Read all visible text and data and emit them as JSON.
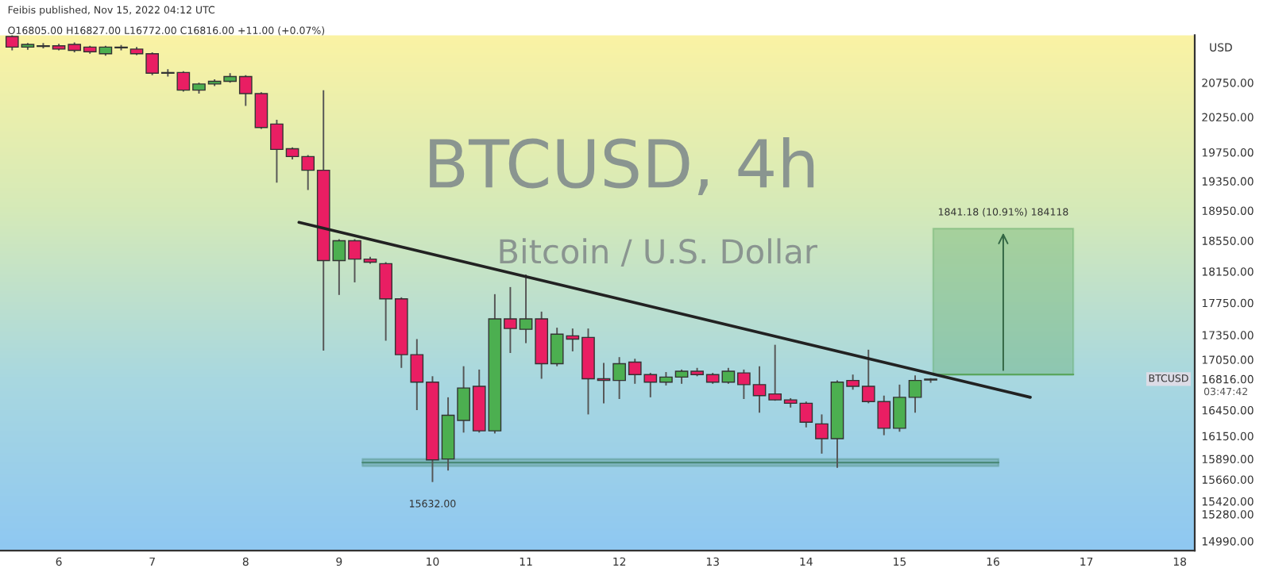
{
  "chart_data": {
    "type": "candlestick",
    "title": "BTCUSD, 4h",
    "subtitle": "Bitcoin / U.S. Dollar",
    "ylabel": "USD",
    "x": [
      5.5,
      5.667,
      5.833,
      6,
      6.167,
      6.333,
      6.5,
      6.667,
      6.833,
      7,
      7.167,
      7.333,
      7.5,
      7.667,
      7.833,
      8,
      8.167,
      8.333,
      8.5,
      8.667,
      8.833,
      9,
      9.167,
      9.333,
      9.5,
      9.667,
      9.833,
      10,
      10.167,
      10.333,
      10.5,
      10.667,
      10.833,
      11,
      11.167,
      11.333,
      11.5,
      11.667,
      11.833,
      12,
      12.167,
      12.333,
      12.5,
      12.667,
      12.833,
      13,
      13.167,
      13.333,
      13.5,
      13.667,
      13.833,
      14,
      14.167,
      14.333,
      14.5,
      14.667,
      14.833,
      15,
      15.167,
      15.333
    ],
    "ohlc": [
      [
        21440,
        21480,
        21230,
        21280
      ],
      [
        21280,
        21340,
        21240,
        21320
      ],
      [
        21300,
        21340,
        21260,
        21290
      ],
      [
        21300,
        21330,
        21230,
        21250
      ],
      [
        21320,
        21350,
        21200,
        21230
      ],
      [
        21280,
        21300,
        21180,
        21210
      ],
      [
        21180,
        21300,
        21150,
        21280
      ],
      [
        21270,
        21310,
        21230,
        21280
      ],
      [
        21250,
        21280,
        21160,
        21180
      ],
      [
        21180,
        21200,
        20860,
        20890
      ],
      [
        20900,
        20950,
        20840,
        20890
      ],
      [
        20900,
        20920,
        20620,
        20640
      ],
      [
        20640,
        20750,
        20590,
        20730
      ],
      [
        20730,
        20800,
        20700,
        20770
      ],
      [
        20770,
        20890,
        20750,
        20840
      ],
      [
        20840,
        20860,
        20410,
        20590
      ],
      [
        20590,
        20610,
        20080,
        20100
      ],
      [
        20150,
        20210,
        19330,
        19790
      ],
      [
        19800,
        19820,
        19650,
        19690
      ],
      [
        19690,
        19710,
        19230,
        19500
      ],
      [
        19500,
        20640,
        17160,
        18290
      ],
      [
        18290,
        18570,
        17850,
        18550
      ],
      [
        18550,
        18570,
        18010,
        18310
      ],
      [
        18310,
        18340,
        18250,
        18270
      ],
      [
        18250,
        18270,
        17280,
        17800
      ],
      [
        17800,
        17820,
        16950,
        17110
      ],
      [
        17110,
        17300,
        16450,
        16780
      ],
      [
        16780,
        16850,
        15632,
        15880
      ],
      [
        15890,
        16600,
        15760,
        16390
      ],
      [
        16330,
        16970,
        16190,
        16710
      ],
      [
        16730,
        16930,
        16190,
        16210
      ],
      [
        16210,
        17860,
        16180,
        17550
      ],
      [
        17550,
        17950,
        17130,
        17430
      ],
      [
        17420,
        18110,
        17250,
        17550
      ],
      [
        17550,
        17640,
        16820,
        17000
      ],
      [
        17000,
        17440,
        16970,
        17360
      ],
      [
        17340,
        17430,
        17150,
        17300
      ],
      [
        17320,
        17430,
        16400,
        16820
      ],
      [
        16820,
        17010,
        16530,
        16800
      ],
      [
        16800,
        17080,
        16580,
        17000
      ],
      [
        17020,
        17060,
        16760,
        16870
      ],
      [
        16870,
        16890,
        16600,
        16780
      ],
      [
        16780,
        16900,
        16740,
        16840
      ],
      [
        16840,
        16930,
        16760,
        16910
      ],
      [
        16910,
        16950,
        16850,
        16870
      ],
      [
        16870,
        16890,
        16760,
        16780
      ],
      [
        16780,
        16950,
        16760,
        16910
      ],
      [
        16890,
        16930,
        16580,
        16750
      ],
      [
        16750,
        16970,
        16420,
        16620
      ],
      [
        16640,
        17230,
        16560,
        16570
      ],
      [
        16570,
        16590,
        16480,
        16530
      ],
      [
        16530,
        16550,
        16250,
        16310
      ],
      [
        16290,
        16400,
        15950,
        16120
      ],
      [
        16120,
        16800,
        15790,
        16780
      ],
      [
        16800,
        16870,
        16690,
        16730
      ],
      [
        16730,
        17170,
        16530,
        16550
      ],
      [
        16550,
        16620,
        16160,
        16240
      ],
      [
        16240,
        16750,
        16200,
        16600
      ],
      [
        16600,
        16860,
        16420,
        16800
      ],
      [
        16805,
        16827,
        16772,
        16816
      ]
    ],
    "colors": [
      "#e91e63",
      "#4caf50",
      "#e91e63",
      "#e91e63",
      "#e91e63",
      "#e91e63",
      "#4caf50",
      "#4caf50",
      "#e91e63",
      "#e91e63",
      "#e91e63",
      "#e91e63",
      "#4caf50",
      "#4caf50",
      "#4caf50",
      "#e91e63",
      "#e91e63",
      "#e91e63",
      "#e91e63",
      "#e91e63",
      "#e91e63",
      "#4caf50",
      "#e91e63",
      "#e91e63",
      "#e91e63",
      "#e91e63",
      "#e91e63",
      "#e91e63",
      "#4caf50",
      "#4caf50",
      "#e91e63",
      "#4caf50",
      "#e91e63",
      "#4caf50",
      "#e91e63",
      "#4caf50",
      "#e91e63",
      "#e91e63",
      "#e91e63",
      "#4caf50",
      "#e91e63",
      "#e91e63",
      "#4caf50",
      "#4caf50",
      "#e91e63",
      "#e91e63",
      "#4caf50",
      "#e91e63",
      "#e91e63",
      "#e91e63",
      "#e91e63",
      "#e91e63",
      "#e91e63",
      "#4caf50",
      "#e91e63",
      "#e91e63",
      "#e91e63",
      "#4caf50",
      "#4caf50",
      "#4caf50"
    ],
    "series": [
      {
        "type": "line",
        "x": [
          8.57,
          16.4
        ],
        "values": [
          18793,
          16600
        ],
        "color": "#222222"
      },
      {
        "type": "line",
        "x": [
          9.25,
          16.06
        ],
        "values": [
          15850,
          15850
        ],
        "lower": [
          15810,
          15810
        ],
        "upper": [
          15890,
          15890
        ],
        "color": "#4a8a78"
      },
      {
        "type": "line",
        "x": [
          15.36,
          16.86
        ],
        "values": [
          16870,
          16870
        ],
        "lower": [
          16870,
          16870
        ],
        "upper": [
          18711,
          18711
        ],
        "color": "#5aa65e"
      }
    ],
    "annotations": [
      "Feibis published, Nov 15, 2022 04:12 UTC",
      "O16805.00 H16827.00 L16772.00 C16816.00 +11.00 (+0.07%)",
      {
        "text": "15632.00",
        "x": 10,
        "y": 15632
      },
      {
        "text": "1841.18 (10.91%) 184118",
        "x": 16.11,
        "y": 18711
      },
      "BTCUSD",
      "03:47:42"
    ],
    "xlim": [
      5.37,
      18.16
    ],
    "ylim": [
      14890,
      21460
    ],
    "log": "y",
    "xticks": [
      6,
      7,
      8,
      9,
      10,
      11,
      12,
      13,
      14,
      15,
      16,
      17,
      18
    ],
    "yticks": [
      {
        "value": 20750,
        "label": "20750.00"
      },
      {
        "value": 20250,
        "label": "20250.00"
      },
      {
        "value": 19750,
        "label": "19750.00"
      },
      {
        "value": 19350,
        "label": "19350.00"
      },
      {
        "value": 18950,
        "label": "18950.00"
      },
      {
        "value": 18550,
        "label": "18550.00"
      },
      {
        "value": 18150,
        "label": "18150.00"
      },
      {
        "value": 17750,
        "label": "17750.00"
      },
      {
        "value": 17350,
        "label": "17350.00"
      },
      {
        "value": 17050,
        "label": "17050.00"
      },
      {
        "value": 16816,
        "label": "16816.00"
      },
      {
        "value": 16450,
        "label": "16450.00"
      },
      {
        "value": 16150,
        "label": "16150.00"
      },
      {
        "value": 15890,
        "label": "15890.00"
      },
      {
        "value": 15660,
        "label": "15660.00"
      },
      {
        "value": 15420,
        "label": "15420.00"
      },
      {
        "value": 15280,
        "label": "15280.00"
      },
      {
        "value": 14990,
        "label": "14990.00"
      }
    ],
    "grid": false,
    "legend": false
  }
}
